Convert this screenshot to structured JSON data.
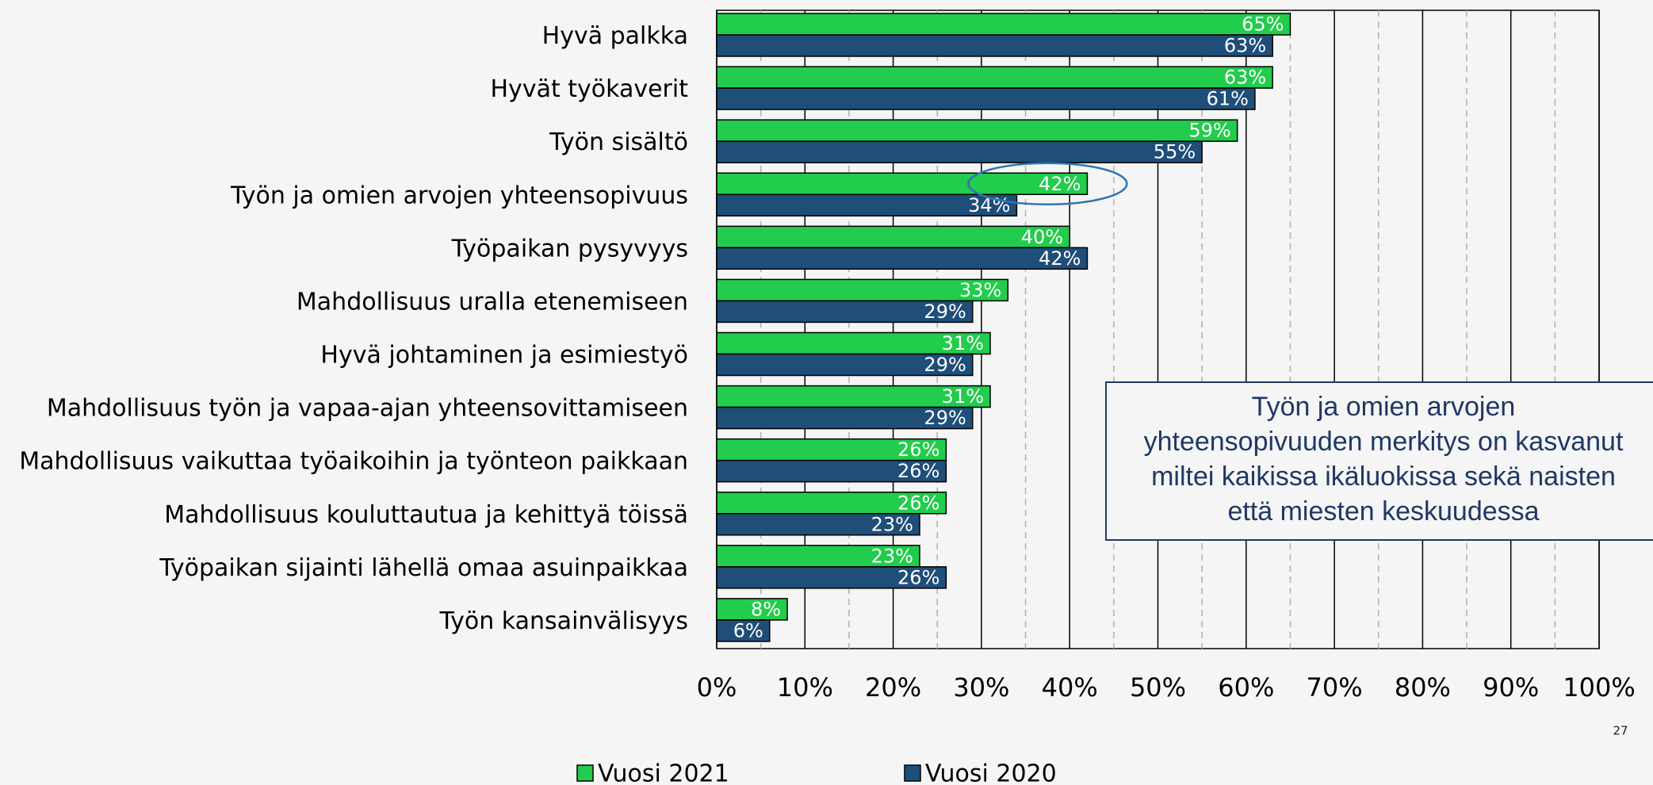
{
  "chart_data": {
    "type": "bar",
    "orientation": "horizontal",
    "categories": [
      "Hyvä palkka",
      "Hyvät työkaverit",
      "Työn sisältö",
      "Työn ja omien arvojen yhteensopivuus",
      "Työpaikan pysyvyys",
      "Mahdollisuus uralla etenemiseen",
      "Hyvä johtaminen ja esimiestyö",
      "Mahdollisuus työn ja vapaa-ajan yhteensovittamiseen",
      "Mahdollisuus vaikuttaa työaikoihin ja työnteon paikkaan",
      "Mahdollisuus kouluttautua ja kehittyä töissä",
      "Työpaikan sijainti lähellä omaa asuinpaikkaa",
      "Työn kansainvälisyys"
    ],
    "series": [
      {
        "name": "Vuosi 2021",
        "color": "#22cc4c",
        "values": [
          65,
          63,
          59,
          42,
          40,
          33,
          31,
          31,
          26,
          26,
          23,
          8
        ],
        "value_labels": [
          "65%",
          "63%",
          "59%",
          "42%",
          "40%",
          "33%",
          "31%",
          "31%",
          "26%",
          "26%",
          "23%",
          "8%"
        ]
      },
      {
        "name": "Vuosi 2020",
        "color": "#1f4e79",
        "values": [
          63,
          61,
          55,
          34,
          42,
          29,
          29,
          29,
          26,
          23,
          26,
          6
        ],
        "value_labels": [
          "63%",
          "61%",
          "55%",
          "34%",
          "42%",
          "29%",
          "29%",
          "29%",
          "26%",
          "23%",
          "26%",
          "6%"
        ]
      }
    ],
    "xlim": [
      0,
      100
    ],
    "xticks": [
      {
        "value": 0,
        "label": "0%"
      },
      {
        "value": 10,
        "label": "10%"
      },
      {
        "value": 20,
        "label": "20%"
      },
      {
        "value": 30,
        "label": "30%"
      },
      {
        "value": 40,
        "label": "40%"
      },
      {
        "value": 50,
        "label": "50%"
      },
      {
        "value": 60,
        "label": "60%"
      },
      {
        "value": 70,
        "label": "70%"
      },
      {
        "value": 80,
        "label": "80%"
      },
      {
        "value": 90,
        "label": "90%"
      },
      {
        "value": 100,
        "label": "100%"
      }
    ],
    "minor_gridlines": [
      5,
      15,
      25,
      35,
      45,
      55,
      65,
      75,
      85,
      95
    ],
    "grid": true,
    "legend": "bottom",
    "annotation": [
      "Työn ja omien arvojen",
      "yhteensopivuuden merkitys on kasvanut",
      "miltei kaikissa ikäluokissa sekä naisten",
      "että miesten keskuudessa"
    ],
    "page_number": "27"
  }
}
